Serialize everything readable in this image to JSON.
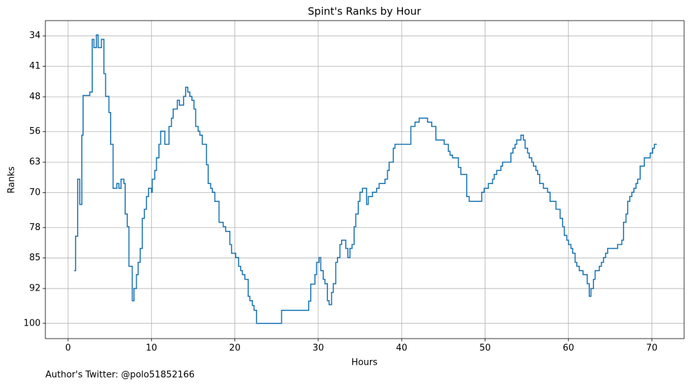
{
  "chart_data": {
    "type": "step",
    "title": "Spint's Ranks by Hour",
    "xlabel": "Hours",
    "ylabel": "Ranks",
    "footnote": "Author's Twitter: @polo51852166",
    "step": "post",
    "grid": true,
    "invert_y": true,
    "color": "#1f77b4",
    "xlim": [
      -2.72,
      73.87
    ],
    "xticks": [
      0,
      10,
      20,
      30,
      40,
      50,
      60,
      70
    ],
    "ylim": [
      30.5,
      103.5
    ],
    "yticks": [
      34,
      41,
      48,
      56,
      63,
      70,
      78,
      85,
      92,
      100
    ],
    "x": [
      0.74,
      0.9,
      1.15,
      1.4,
      1.65,
      1.8,
      2.6,
      2.9,
      3.1,
      3.4,
      3.6,
      4.0,
      4.3,
      4.5,
      4.9,
      5.1,
      5.4,
      5.85,
      6.1,
      6.35,
      6.7,
      6.85,
      7.1,
      7.3,
      7.7,
      7.9,
      8.2,
      8.4,
      8.65,
      8.9,
      9.15,
      9.4,
      9.65,
      10.0,
      10.1,
      10.4,
      10.6,
      10.9,
      11.1,
      11.6,
      12.1,
      12.4,
      12.6,
      13.1,
      13.35,
      13.85,
      14.1,
      14.35,
      14.6,
      14.85,
      15.1,
      15.3,
      15.6,
      15.8,
      16.1,
      16.6,
      16.8,
      17.1,
      17.3,
      17.6,
      18.1,
      18.6,
      18.9,
      19.4,
      19.6,
      20.1,
      20.45,
      20.7,
      20.9,
      21.2,
      21.6,
      21.8,
      22.1,
      22.3,
      22.6,
      25.6,
      28.85,
      29.1,
      29.6,
      29.8,
      30.1,
      30.3,
      30.6,
      30.8,
      31.1,
      31.3,
      31.6,
      31.8,
      32.1,
      32.3,
      32.6,
      32.8,
      33.3,
      33.55,
      33.8,
      34.05,
      34.3,
      34.5,
      34.8,
      35.0,
      35.3,
      35.8,
      36.0,
      36.5,
      37.0,
      37.3,
      38.0,
      38.3,
      38.5,
      39.0,
      39.2,
      41.1,
      41.6,
      42.1,
      43.1,
      43.6,
      44.1,
      45.1,
      45.6,
      45.8,
      46.1,
      46.8,
      47.1,
      47.8,
      48.1,
      49.6,
      49.9,
      50.4,
      50.9,
      51.1,
      51.4,
      51.9,
      52.1,
      53.1,
      53.35,
      53.6,
      53.8,
      54.3,
      54.6,
      54.8,
      55.1,
      55.3,
      55.6,
      55.8,
      56.1,
      56.3,
      56.55,
      57.0,
      57.5,
      57.8,
      58.5,
      59.0,
      59.3,
      59.5,
      59.8,
      60.0,
      60.3,
      60.5,
      60.8,
      61.0,
      61.3,
      61.75,
      62.25,
      62.5,
      62.7,
      63.0,
      63.2,
      63.7,
      63.95,
      64.2,
      64.45,
      64.7,
      65.9,
      66.4,
      66.6,
      66.9,
      67.1,
      67.35,
      67.6,
      67.85,
      68.1,
      68.3,
      68.6,
      69.1,
      69.8,
      70.1,
      70.3,
      70.6
    ],
    "values": [
      87.9,
      80.0,
      66.9,
      72.7,
      56.8,
      47.7,
      46.9,
      34.8,
      36.7,
      33.8,
      36.7,
      34.8,
      42.7,
      47.9,
      51.6,
      58.9,
      69.0,
      67.9,
      69.0,
      66.9,
      67.9,
      74.9,
      77.8,
      86.9,
      94.8,
      92.0,
      88.8,
      86.0,
      82.8,
      75.9,
      73.8,
      70.9,
      69.0,
      69.9,
      66.9,
      64.9,
      62.0,
      58.9,
      55.9,
      58.9,
      54.8,
      52.9,
      50.8,
      48.8,
      49.9,
      47.9,
      45.8,
      46.9,
      47.9,
      48.8,
      50.8,
      54.8,
      55.9,
      56.8,
      58.9,
      63.6,
      67.9,
      69.0,
      69.9,
      72.0,
      76.8,
      77.8,
      78.9,
      81.9,
      83.9,
      84.9,
      86.9,
      87.9,
      88.8,
      89.9,
      93.8,
      94.8,
      95.9,
      97.0,
      100,
      97.0,
      94.9,
      91.0,
      88.8,
      86.0,
      84.9,
      87.9,
      89.9,
      90.9,
      94.8,
      95.7,
      92.9,
      90.9,
      86.0,
      84.9,
      81.9,
      80.9,
      82.8,
      84.9,
      82.8,
      81.9,
      77.8,
      74.9,
      72.0,
      69.9,
      69.0,
      72.7,
      70.9,
      69.9,
      69.0,
      67.9,
      66.9,
      64.9,
      63.0,
      59.8,
      58.9,
      54.8,
      53.8,
      52.9,
      53.8,
      54.8,
      57.9,
      58.9,
      60.5,
      61.4,
      62.0,
      64.2,
      65.8,
      70.9,
      72.0,
      69.9,
      69.0,
      67.9,
      66.9,
      65.8,
      64.9,
      63.9,
      63.0,
      60.9,
      59.8,
      58.9,
      57.9,
      56.8,
      57.9,
      59.8,
      60.9,
      62.0,
      63.0,
      63.9,
      64.9,
      65.8,
      67.9,
      69.0,
      69.9,
      72.0,
      73.8,
      75.9,
      77.8,
      79.8,
      80.9,
      81.9,
      82.8,
      83.9,
      86.0,
      86.9,
      87.9,
      88.8,
      90.9,
      93.8,
      92.0,
      89.9,
      87.9,
      86.9,
      86.0,
      84.9,
      83.9,
      82.8,
      81.9,
      80.9,
      76.8,
      74.9,
      72.0,
      70.9,
      69.9,
      69.0,
      67.9,
      66.9,
      63.9,
      62.0,
      60.9,
      59.8,
      58.9,
      58.9
    ]
  }
}
